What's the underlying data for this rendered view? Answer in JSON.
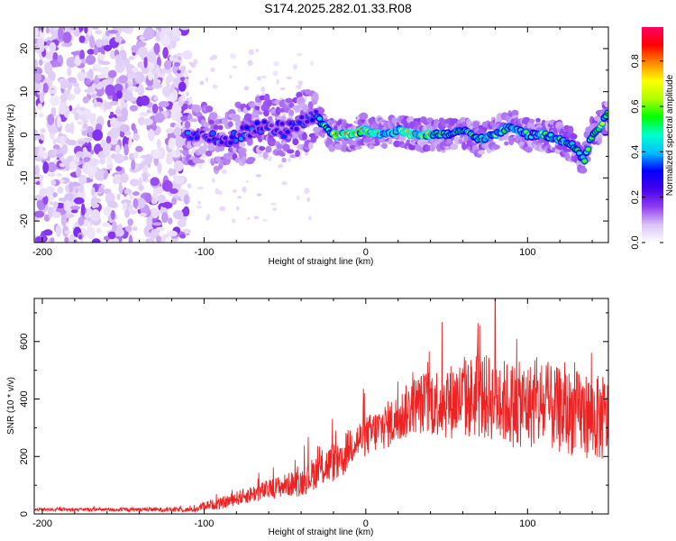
{
  "title": "S174.2025.282.01.33.R08",
  "chart_data": [
    {
      "type": "heatmap",
      "name": "spectrogram",
      "xlabel": "Height of straight line (km)",
      "ylabel": "Frequency (Hz)",
      "xlim": [
        -205,
        150
      ],
      "ylim": [
        -25,
        25
      ],
      "xticks": [
        -200,
        -100,
        0,
        100
      ],
      "xtick_labels": [
        "-200",
        "-100",
        "0",
        "100"
      ],
      "yticks": [
        -20,
        -10,
        0,
        10,
        20
      ],
      "ytick_labels": [
        "-20",
        "-10",
        "0",
        "10",
        "20"
      ],
      "colorbar": {
        "label": "Normalized spectral amplitude",
        "range": [
          0.0,
          0.95
        ],
        "ticks": [
          0.0,
          0.2,
          0.4,
          0.6,
          0.8
        ],
        "tick_labels": [
          "0.0",
          "0.2",
          "0.4",
          "0.6",
          "0.8"
        ],
        "colormap": [
          "#ffffff",
          "#d9c2f5",
          "#8f3cf0",
          "#4400e8",
          "#0000ff",
          "#00bfff",
          "#00ffcc",
          "#00ff00",
          "#b0ff00",
          "#ffff00",
          "#ff8800",
          "#ff0000",
          "#ff0066"
        ]
      },
      "ridge": {
        "description": "dominant frequency track",
        "x": [
          -110,
          -100,
          -90,
          -80,
          -70,
          -60,
          -50,
          -40,
          -32,
          -28,
          -20,
          -10,
          0,
          10,
          20,
          30,
          40,
          50,
          60,
          70,
          80,
          90,
          100,
          110,
          120,
          130,
          135,
          140,
          145,
          150
        ],
        "y": [
          0,
          0,
          -2,
          0,
          1,
          2,
          1,
          3,
          5,
          3,
          0,
          0,
          1,
          0,
          1,
          0,
          0,
          0,
          1,
          -1,
          0,
          2,
          0,
          0,
          -1,
          -3,
          -6,
          0,
          2,
          5
        ],
        "peak_amplitude_x_range": [
          -20,
          40
        ]
      }
    },
    {
      "type": "line",
      "name": "snr",
      "xlabel": "Height of straight line (km)",
      "ylabel": "SNR (10 * v/v)",
      "color": "#ee2222",
      "xlim": [
        -205,
        150
      ],
      "ylim": [
        0,
        750
      ],
      "xticks": [
        -200,
        -100,
        0,
        100
      ],
      "xtick_labels": [
        "-200",
        "-100",
        "0",
        "100"
      ],
      "yticks": [
        0,
        200,
        400,
        600
      ],
      "ytick_labels": [
        "0",
        "200",
        "400",
        "600"
      ],
      "envelope": {
        "x": [
          -205,
          -105,
          -100,
          -90,
          -80,
          -70,
          -60,
          -50,
          -40,
          -30,
          -20,
          -15,
          -10,
          0,
          10,
          20,
          30,
          40,
          50,
          60,
          70,
          80,
          90,
          100,
          110,
          120,
          130,
          140,
          150
        ],
        "mean": [
          15,
          15,
          30,
          35,
          55,
          70,
          85,
          100,
          110,
          150,
          180,
          170,
          240,
          270,
          300,
          330,
          380,
          390,
          390,
          400,
          410,
          400,
          380,
          380,
          370,
          360,
          350,
          340,
          320
        ],
        "spread": [
          5,
          8,
          15,
          20,
          25,
          30,
          35,
          40,
          50,
          60,
          70,
          60,
          70,
          70,
          80,
          90,
          100,
          120,
          130,
          140,
          150,
          150,
          150,
          150,
          150,
          150,
          150,
          150,
          150
        ]
      },
      "max_value": 750,
      "max_value_x": 80
    }
  ]
}
